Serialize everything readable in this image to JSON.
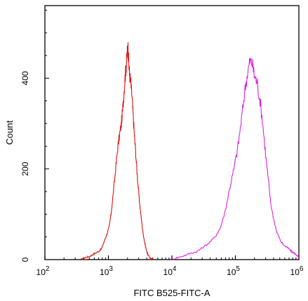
{
  "chart_data": {
    "type": "line",
    "title": "",
    "xlabel": "FITC B525-FITC-A",
    "ylabel": "Count",
    "x_scale": "log",
    "xlim": [
      100,
      1000000
    ],
    "ylim": [
      0,
      560
    ],
    "x_major_ticks": [
      {
        "value": 100,
        "base": "10",
        "exp": "2"
      },
      {
        "value": 1000,
        "base": "10",
        "exp": "3"
      },
      {
        "value": 10000,
        "base": "10",
        "exp": "4"
      },
      {
        "value": 100000,
        "base": "10",
        "exp": "5"
      },
      {
        "value": 1000000,
        "base": "10",
        "exp": "6"
      }
    ],
    "y_ticks": [
      {
        "value": 0,
        "label": "0"
      },
      {
        "value": 200,
        "label": "200"
      },
      {
        "value": 400,
        "label": "400"
      }
    ],
    "grid": false,
    "series": [
      {
        "color": "#dd1111",
        "points": [
          [
            370,
            0
          ],
          [
            420,
            4
          ],
          [
            480,
            6
          ],
          [
            550,
            10
          ],
          [
            620,
            14
          ],
          [
            700,
            18
          ],
          [
            780,
            24
          ],
          [
            860,
            40
          ],
          [
            940,
            55
          ],
          [
            1020,
            70
          ],
          [
            1100,
            100
          ],
          [
            1200,
            150
          ],
          [
            1300,
            200
          ],
          [
            1400,
            245
          ],
          [
            1500,
            275
          ],
          [
            1600,
            300
          ],
          [
            1700,
            340
          ],
          [
            1780,
            380
          ],
          [
            1850,
            410
          ],
          [
            1920,
            430
          ],
          [
            1980,
            455
          ],
          [
            2030,
            472
          ],
          [
            2080,
            440
          ],
          [
            2150,
            410
          ],
          [
            2250,
            390
          ],
          [
            2350,
            360
          ],
          [
            2450,
            320
          ],
          [
            2550,
            280
          ],
          [
            2650,
            250
          ],
          [
            2800,
            200
          ],
          [
            2950,
            160
          ],
          [
            3100,
            125
          ],
          [
            3300,
            90
          ],
          [
            3500,
            60
          ],
          [
            3700,
            40
          ],
          [
            3900,
            25
          ],
          [
            4100,
            14
          ],
          [
            4400,
            6
          ],
          [
            4700,
            2
          ],
          [
            5000,
            0
          ]
        ]
      },
      {
        "color": "#dd22dd",
        "points": [
          [
            9500,
            0
          ],
          [
            12000,
            4
          ],
          [
            15000,
            8
          ],
          [
            20000,
            14
          ],
          [
            25000,
            18
          ],
          [
            30000,
            26
          ],
          [
            38000,
            36
          ],
          [
            48000,
            50
          ],
          [
            58000,
            70
          ],
          [
            70000,
            110
          ],
          [
            82000,
            160
          ],
          [
            95000,
            200
          ],
          [
            110000,
            250
          ],
          [
            125000,
            310
          ],
          [
            140000,
            370
          ],
          [
            155000,
            410
          ],
          [
            170000,
            438
          ],
          [
            185000,
            432
          ],
          [
            200000,
            405
          ],
          [
            220000,
            390
          ],
          [
            245000,
            350
          ],
          [
            270000,
            300
          ],
          [
            300000,
            230
          ],
          [
            330000,
            175
          ],
          [
            360000,
            125
          ],
          [
            400000,
            90
          ],
          [
            450000,
            60
          ],
          [
            520000,
            40
          ],
          [
            600000,
            30
          ],
          [
            680000,
            25
          ],
          [
            760000,
            18
          ],
          [
            850000,
            14
          ],
          [
            920000,
            10
          ],
          [
            980000,
            6
          ],
          [
            1000000,
            4
          ]
        ]
      }
    ],
    "annotations": []
  }
}
